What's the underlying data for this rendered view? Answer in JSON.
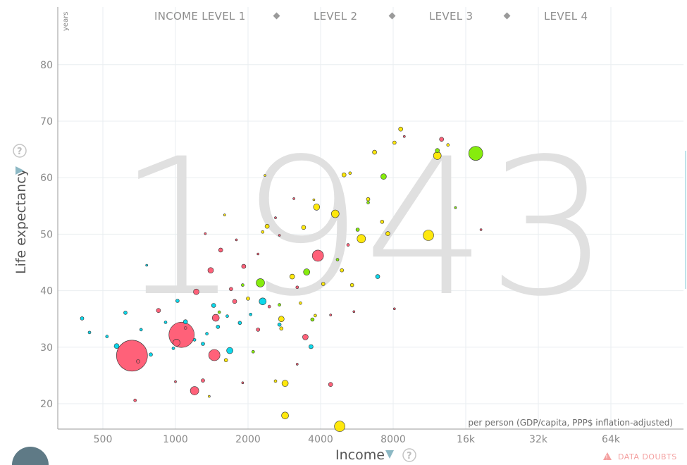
{
  "year_label": "1943",
  "legend": {
    "items": [
      "INCOME LEVEL 1",
      "LEVEL 2",
      "LEVEL 3",
      "LEVEL 4"
    ]
  },
  "y_axis": {
    "title": "Life expectancy",
    "unit": "years",
    "ticks": [
      "20",
      "30",
      "40",
      "50",
      "60",
      "70",
      "80"
    ]
  },
  "x_axis": {
    "title": "Income",
    "unit_note": "per person (GDP/capita, PPP$ inflation-adjusted)",
    "ticks": [
      "500",
      "1000",
      "2000",
      "4000",
      "8000",
      "16k",
      "32k",
      "64k"
    ]
  },
  "footer": {
    "data_doubts": "DATA DOUBTS"
  },
  "icons": {
    "help": "question-circle-icon",
    "dropdown": "triangle-down-icon",
    "warning": "warning-triangle-icon"
  },
  "colors": {
    "region_red": "#ff5872",
    "region_cyan": "#00d5e9",
    "region_yellow": "#ffe700",
    "region_green": "#7feb00",
    "legend_marker": "#999999",
    "year_watermark": "#e0e0e0"
  },
  "chart_data": {
    "type": "scatter",
    "x_scale": "log2",
    "xlim": [
      250,
      120000
    ],
    "ylim": [
      15,
      90
    ],
    "xlabel": "Income",
    "ylabel": "Life expectancy",
    "grid": true,
    "year": "1943",
    "points": [
      {
        "x": 660,
        "y": 28.5,
        "size": 22,
        "color": "region_red"
      },
      {
        "x": 1060,
        "y": 32.2,
        "size": 18,
        "color": "region_red"
      },
      {
        "x": 3900,
        "y": 46.2,
        "size": 8,
        "color": "region_red"
      },
      {
        "x": 1450,
        "y": 28.6,
        "size": 8,
        "color": "region_red"
      },
      {
        "x": 1200,
        "y": 22.3,
        "size": 6,
        "color": "region_red"
      },
      {
        "x": 1470,
        "y": 35.2,
        "size": 5,
        "color": "region_red"
      },
      {
        "x": 1010,
        "y": 30.8,
        "size": 5,
        "color": "region_red"
      },
      {
        "x": 1400,
        "y": 43.6,
        "size": 4,
        "color": "region_red"
      },
      {
        "x": 1220,
        "y": 39.8,
        "size": 4,
        "color": "region_red"
      },
      {
        "x": 3460,
        "y": 31.8,
        "size": 4,
        "color": "region_red"
      },
      {
        "x": 1540,
        "y": 47.2,
        "size": 3,
        "color": "region_red"
      },
      {
        "x": 1760,
        "y": 38.1,
        "size": 3,
        "color": "region_red"
      },
      {
        "x": 1920,
        "y": 44.3,
        "size": 3,
        "color": "region_red"
      },
      {
        "x": 850,
        "y": 36.5,
        "size": 3,
        "color": "region_red"
      },
      {
        "x": 4400,
        "y": 23.4,
        "size": 3,
        "color": "region_red"
      },
      {
        "x": 12700,
        "y": 66.8,
        "size": 3,
        "color": "region_red"
      },
      {
        "x": 1300,
        "y": 24.1,
        "size": 2.5,
        "color": "region_red"
      },
      {
        "x": 1700,
        "y": 40.3,
        "size": 2.5,
        "color": "region_red"
      },
      {
        "x": 700,
        "y": 27.5,
        "size": 2.5,
        "color": "region_red"
      },
      {
        "x": 2200,
        "y": 33.1,
        "size": 2.5,
        "color": "region_red"
      },
      {
        "x": 3200,
        "y": 40.6,
        "size": 2,
        "color": "region_red"
      },
      {
        "x": 5200,
        "y": 48.1,
        "size": 2,
        "color": "region_red"
      },
      {
        "x": 680,
        "y": 20.6,
        "size": 2,
        "color": "region_red"
      },
      {
        "x": 2450,
        "y": 37.2,
        "size": 2,
        "color": "region_red"
      },
      {
        "x": 1100,
        "y": 33.4,
        "size": 2,
        "color": "region_red"
      },
      {
        "x": 2300,
        "y": 38.1,
        "size": 5,
        "color": "region_cyan"
      },
      {
        "x": 1680,
        "y": 29.4,
        "size": 4.5,
        "color": "region_cyan"
      },
      {
        "x": 570,
        "y": 30.2,
        "size": 3.5,
        "color": "region_cyan"
      },
      {
        "x": 3650,
        "y": 30.1,
        "size": 3,
        "color": "region_cyan"
      },
      {
        "x": 1440,
        "y": 37.4,
        "size": 3,
        "color": "region_cyan"
      },
      {
        "x": 1100,
        "y": 34.5,
        "size": 3,
        "color": "region_cyan"
      },
      {
        "x": 6900,
        "y": 42.5,
        "size": 3,
        "color": "region_cyan"
      },
      {
        "x": 2700,
        "y": 34.0,
        "size": 2.5,
        "color": "region_cyan"
      },
      {
        "x": 1850,
        "y": 34.3,
        "size": 2.5,
        "color": "region_cyan"
      },
      {
        "x": 790,
        "y": 28.7,
        "size": 2.5,
        "color": "region_cyan"
      },
      {
        "x": 1300,
        "y": 30.6,
        "size": 2.5,
        "color": "region_cyan"
      },
      {
        "x": 1500,
        "y": 33.6,
        "size": 2.5,
        "color": "region_cyan"
      },
      {
        "x": 410,
        "y": 35.1,
        "size": 2.5,
        "color": "region_cyan"
      },
      {
        "x": 620,
        "y": 36.1,
        "size": 2.5,
        "color": "region_cyan"
      },
      {
        "x": 1020,
        "y": 38.2,
        "size": 2.5,
        "color": "region_cyan"
      },
      {
        "x": 520,
        "y": 31.9,
        "size": 2,
        "color": "region_cyan"
      },
      {
        "x": 910,
        "y": 34.4,
        "size": 2,
        "color": "region_cyan"
      },
      {
        "x": 1200,
        "y": 31.3,
        "size": 2,
        "color": "region_cyan"
      },
      {
        "x": 1640,
        "y": 35.5,
        "size": 2,
        "color": "region_cyan"
      },
      {
        "x": 440,
        "y": 32.6,
        "size": 2,
        "color": "region_cyan"
      },
      {
        "x": 720,
        "y": 33.1,
        "size": 2,
        "color": "region_cyan"
      },
      {
        "x": 980,
        "y": 29.8,
        "size": 2,
        "color": "region_cyan"
      },
      {
        "x": 1350,
        "y": 32.4,
        "size": 2,
        "color": "region_cyan"
      },
      {
        "x": 2050,
        "y": 35.8,
        "size": 2,
        "color": "region_cyan"
      },
      {
        "x": 4800,
        "y": 16.0,
        "size": 7.5,
        "color": "region_yellow"
      },
      {
        "x": 11200,
        "y": 49.8,
        "size": 7.5,
        "color": "region_yellow"
      },
      {
        "x": 5900,
        "y": 49.2,
        "size": 6,
        "color": "region_yellow"
      },
      {
        "x": 4600,
        "y": 53.6,
        "size": 5.5,
        "color": "region_yellow"
      },
      {
        "x": 12200,
        "y": 63.9,
        "size": 5.5,
        "color": "region_yellow"
      },
      {
        "x": 2850,
        "y": 17.9,
        "size": 5,
        "color": "region_yellow"
      },
      {
        "x": 2850,
        "y": 23.6,
        "size": 4.5,
        "color": "region_yellow"
      },
      {
        "x": 3850,
        "y": 54.8,
        "size": 4.5,
        "color": "region_yellow"
      },
      {
        "x": 2750,
        "y": 35.0,
        "size": 4,
        "color": "region_yellow"
      },
      {
        "x": 3050,
        "y": 42.5,
        "size": 3.5,
        "color": "region_yellow"
      },
      {
        "x": 2400,
        "y": 51.4,
        "size": 3,
        "color": "region_yellow"
      },
      {
        "x": 3400,
        "y": 51.2,
        "size": 3,
        "color": "region_yellow"
      },
      {
        "x": 5000,
        "y": 60.5,
        "size": 3,
        "color": "region_yellow"
      },
      {
        "x": 6700,
        "y": 64.5,
        "size": 3,
        "color": "region_yellow"
      },
      {
        "x": 7600,
        "y": 50.1,
        "size": 3,
        "color": "region_yellow"
      },
      {
        "x": 8600,
        "y": 68.6,
        "size": 3,
        "color": "region_yellow"
      },
      {
        "x": 2750,
        "y": 33.3,
        "size": 2.5,
        "color": "region_yellow"
      },
      {
        "x": 4100,
        "y": 41.2,
        "size": 2.5,
        "color": "region_yellow"
      },
      {
        "x": 4900,
        "y": 43.6,
        "size": 2.5,
        "color": "region_yellow"
      },
      {
        "x": 5400,
        "y": 41.0,
        "size": 2.5,
        "color": "region_yellow"
      },
      {
        "x": 6300,
        "y": 56.2,
        "size": 2.5,
        "color": "region_yellow"
      },
      {
        "x": 7200,
        "y": 52.2,
        "size": 2.5,
        "color": "region_yellow"
      },
      {
        "x": 8100,
        "y": 66.2,
        "size": 2.5,
        "color": "region_yellow"
      },
      {
        "x": 2000,
        "y": 38.6,
        "size": 2.5,
        "color": "region_yellow"
      },
      {
        "x": 1620,
        "y": 27.7,
        "size": 2.5,
        "color": "region_yellow"
      },
      {
        "x": 2600,
        "y": 24.0,
        "size": 2,
        "color": "region_yellow"
      },
      {
        "x": 3300,
        "y": 37.8,
        "size": 2,
        "color": "region_yellow"
      },
      {
        "x": 5300,
        "y": 60.8,
        "size": 2,
        "color": "region_yellow"
      },
      {
        "x": 13500,
        "y": 65.8,
        "size": 2,
        "color": "region_yellow"
      },
      {
        "x": 3800,
        "y": 35.6,
        "size": 2,
        "color": "region_yellow"
      },
      {
        "x": 2300,
        "y": 50.4,
        "size": 2,
        "color": "region_yellow"
      },
      {
        "x": 17600,
        "y": 64.3,
        "size": 10,
        "color": "region_green"
      },
      {
        "x": 2250,
        "y": 41.4,
        "size": 6,
        "color": "region_green"
      },
      {
        "x": 3500,
        "y": 43.3,
        "size": 4.5,
        "color": "region_green"
      },
      {
        "x": 7300,
        "y": 60.2,
        "size": 4,
        "color": "region_green"
      },
      {
        "x": 12200,
        "y": 64.8,
        "size": 3,
        "color": "region_green"
      },
      {
        "x": 3700,
        "y": 34.9,
        "size": 2.5,
        "color": "region_green"
      },
      {
        "x": 5700,
        "y": 50.8,
        "size": 2.5,
        "color": "region_green"
      },
      {
        "x": 2100,
        "y": 29.2,
        "size": 2,
        "color": "region_green"
      },
      {
        "x": 2700,
        "y": 37.5,
        "size": 2,
        "color": "region_green"
      },
      {
        "x": 6300,
        "y": 55.6,
        "size": 2,
        "color": "region_green"
      },
      {
        "x": 1520,
        "y": 36.2,
        "size": 2,
        "color": "region_green"
      },
      {
        "x": 4700,
        "y": 45.5,
        "size": 2,
        "color": "region_green"
      },
      {
        "x": 1900,
        "y": 41.0,
        "size": 2,
        "color": "region_green"
      },
      {
        "x": 14500,
        "y": 54.7,
        "size": 1.5,
        "color": "region_green"
      },
      {
        "x": 18500,
        "y": 50.8,
        "size": 1.5,
        "color": "region_red"
      },
      {
        "x": 2700,
        "y": 49.8,
        "size": 1.5,
        "color": "region_red"
      },
      {
        "x": 3100,
        "y": 56.3,
        "size": 1.5,
        "color": "region_red"
      },
      {
        "x": 2600,
        "y": 52.9,
        "size": 1.5,
        "color": "region_red"
      },
      {
        "x": 3750,
        "y": 56.1,
        "size": 1.5,
        "color": "region_yellow"
      },
      {
        "x": 1600,
        "y": 53.4,
        "size": 1.5,
        "color": "region_yellow"
      },
      {
        "x": 2350,
        "y": 60.4,
        "size": 1.5,
        "color": "region_yellow"
      },
      {
        "x": 760,
        "y": 44.5,
        "size": 1.5,
        "color": "region_cyan"
      },
      {
        "x": 1330,
        "y": 50.1,
        "size": 1.5,
        "color": "region_red"
      },
      {
        "x": 1790,
        "y": 49.0,
        "size": 1.5,
        "color": "region_red"
      },
      {
        "x": 2200,
        "y": 46.5,
        "size": 1.5,
        "color": "region_red"
      },
      {
        "x": 8900,
        "y": 67.3,
        "size": 1.5,
        "color": "region_red"
      },
      {
        "x": 8100,
        "y": 36.8,
        "size": 1.5,
        "color": "region_red"
      },
      {
        "x": 1000,
        "y": 23.9,
        "size": 1.5,
        "color": "region_red"
      },
      {
        "x": 1900,
        "y": 23.7,
        "size": 1.5,
        "color": "region_red"
      },
      {
        "x": 1380,
        "y": 21.3,
        "size": 1.5,
        "color": "region_yellow"
      },
      {
        "x": 3200,
        "y": 27.0,
        "size": 1.5,
        "color": "region_red"
      },
      {
        "x": 4400,
        "y": 35.7,
        "size": 1.5,
        "color": "region_red"
      },
      {
        "x": 5500,
        "y": 36.3,
        "size": 1.5,
        "color": "region_red"
      }
    ]
  }
}
